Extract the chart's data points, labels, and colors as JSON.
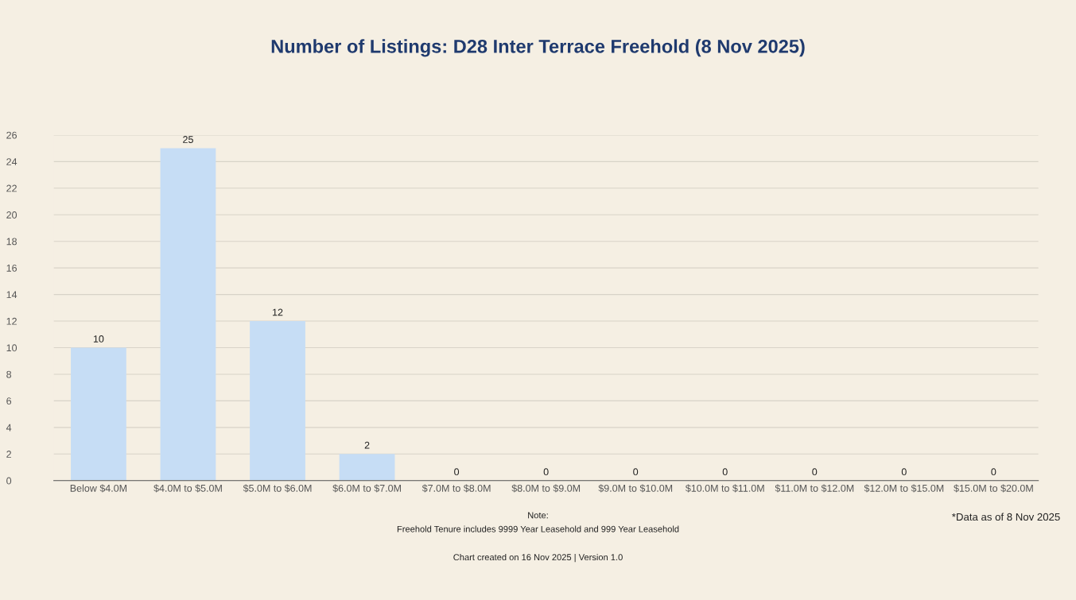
{
  "chart_data": {
    "type": "bar",
    "title": "Number of Listings: D28 Inter Terrace Freehold (8 Nov 2025)",
    "categories": [
      "Below $4.0M",
      "$4.0M to $5.0M",
      "$5.0M to $6.0M",
      "$6.0M to $7.0M",
      "$7.0M to $8.0M",
      "$8.0M to $9.0M",
      "$9.0M to $10.0M",
      "$10.0M to $11.0M",
      "$11.0M to $12.0M",
      "$12.0M to $15.0M",
      "$15.0M to $20.0M"
    ],
    "values": [
      10,
      25,
      12,
      2,
      0,
      0,
      0,
      0,
      0,
      0,
      0
    ],
    "color": "#c6ddf5",
    "ylim": [
      0,
      26
    ],
    "yticks": [
      0,
      2,
      4,
      6,
      8,
      10,
      12,
      14,
      16,
      18,
      20,
      22,
      24,
      26
    ],
    "grid": "y",
    "data_labels": true,
    "annotations": [
      "Note:",
      "Freehold Tenure includes 9999 Year Leasehold and 999 Year Leasehold",
      "Chart created on 16 Nov 2025 | Version 1.0",
      "*Data as of 8 Nov 2025"
    ]
  }
}
